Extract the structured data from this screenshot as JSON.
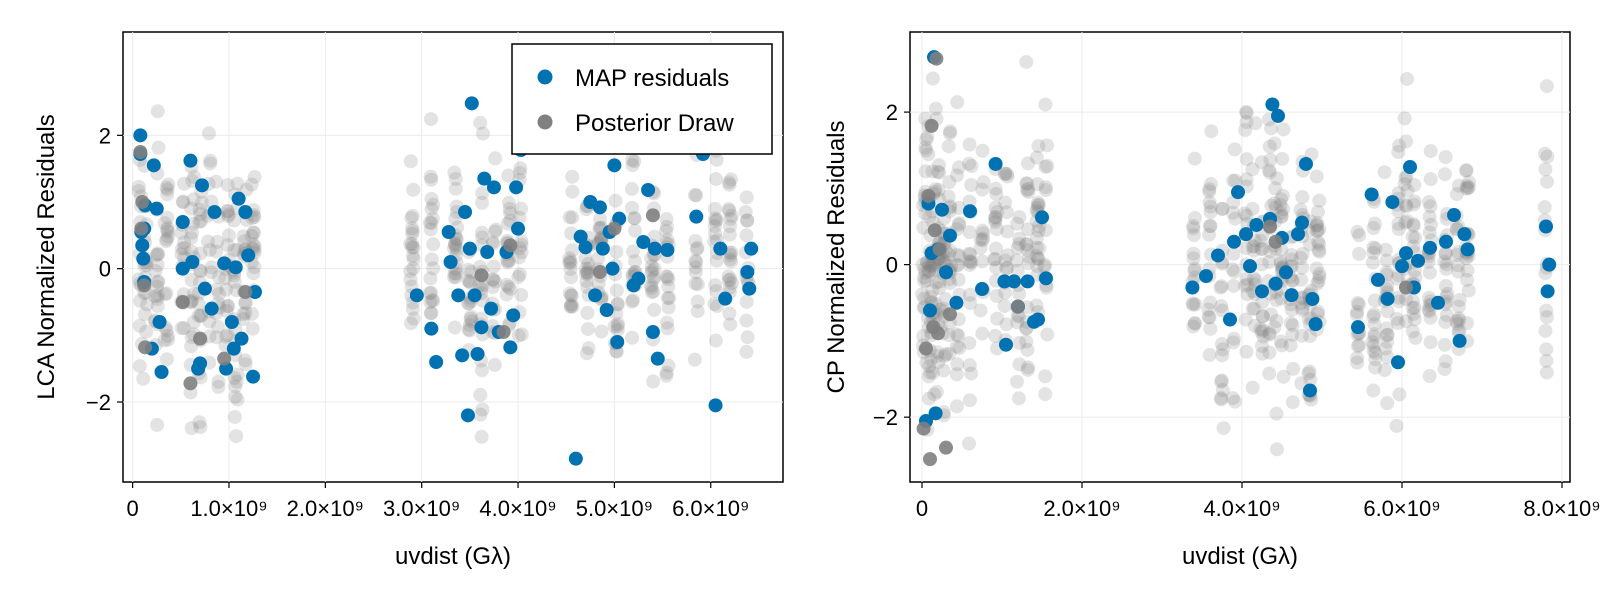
{
  "chart_data": [
    {
      "type": "scatter",
      "xlabel": "uvdist (Gλ)",
      "ylabel": "LCA Normalized Residuals",
      "xlim": [
        -100000000.0,
        6750000000.0
      ],
      "ylim": [
        -3.2,
        3.55
      ],
      "grid": true,
      "legend": {
        "placement": "top-right",
        "entries": [
          "MAP residuals",
          "Posterior Draw"
        ]
      },
      "x_ticks": [
        {
          "value": 0,
          "label": "0"
        },
        {
          "value": 1000000000.0,
          "label": "1.0×10⁹"
        },
        {
          "value": 2000000000.0,
          "label": "2.0×10⁹"
        },
        {
          "value": 3000000000.0,
          "label": "3.0×10⁹"
        },
        {
          "value": 4000000000.0,
          "label": "4.0×10⁹"
        },
        {
          "value": 5000000000.0,
          "label": "5.0×10⁹"
        },
        {
          "value": 6000000000.0,
          "label": "6.0×10⁹"
        }
      ],
      "y_ticks": [
        {
          "value": -2,
          "label": "−2"
        },
        {
          "value": 0,
          "label": "0"
        },
        {
          "value": 2,
          "label": "2"
        }
      ],
      "x_clusters": [
        80000000.0,
        130000000.0,
        250000000.0,
        350000000.0,
        520000000.0,
        620000000.0,
        700000000.0,
        800000000.0,
        880000000.0,
        980000000.0,
        1070000000.0,
        1170000000.0,
        1250000000.0,
        2900000000.0,
        3100000000.0,
        3350000000.0,
        3500000000.0,
        3620000000.0,
        3750000000.0,
        3900000000.0,
        4020000000.0,
        4550000000.0,
        4720000000.0,
        4850000000.0,
        5020000000.0,
        5200000000.0,
        5400000000.0,
        5550000000.0,
        5850000000.0,
        6050000000.0,
        6200000000.0,
        6380000000.0
      ],
      "series": [
        {
          "name": "MAP residuals",
          "color": "#0072b2",
          "x": [
            80000000.0,
            80000000.0,
            90000000.0,
            100000000.0,
            110000000.0,
            120000000.0,
            120000000.0,
            130000000.0,
            200000000.0,
            220000000.0,
            250000000.0,
            280000000.0,
            300000000.0,
            520000000.0,
            520000000.0,
            600000000.0,
            620000000.0,
            680000000.0,
            700000000.0,
            720000000.0,
            750000000.0,
            820000000.0,
            850000000.0,
            950000000.0,
            970000000.0,
            1030000000.0,
            1050000000.0,
            1070000000.0,
            1100000000.0,
            1130000000.0,
            1170000000.0,
            1200000000.0,
            1250000000.0,
            1270000000.0,
            2950000000.0,
            3100000000.0,
            3150000000.0,
            3280000000.0,
            3300000000.0,
            3380000000.0,
            3420000000.0,
            3450000000.0,
            3480000000.0,
            3500000000.0,
            3520000000.0,
            3550000000.0,
            3580000000.0,
            3620000000.0,
            3650000000.0,
            3680000000.0,
            3720000000.0,
            3750000000.0,
            3800000000.0,
            3880000000.0,
            3920000000.0,
            3950000000.0,
            3980000000.0,
            4000000000.0,
            4030000000.0,
            4600000000.0,
            4650000000.0,
            4700000000.0,
            4750000000.0,
            4800000000.0,
            4850000000.0,
            4880000000.0,
            4920000000.0,
            4950000000.0,
            4980000000.0,
            5000000000.0,
            5030000000.0,
            5050000000.0,
            5200000000.0,
            5250000000.0,
            5300000000.0,
            5350000000.0,
            5400000000.0,
            5420000000.0,
            5450000000.0,
            5550000000.0,
            5850000000.0,
            5920000000.0,
            6050000000.0,
            6100000000.0,
            6150000000.0,
            6380000000.0,
            6400000000.0,
            6420000000.0
          ],
          "y": [
            2.0,
            1.72,
            0.55,
            0.35,
            0.15,
            -0.2,
            0.6,
            0.95,
            -1.2,
            1.55,
            0.9,
            -0.8,
            -1.55,
            0.0,
            0.7,
            1.62,
            0.1,
            -1.5,
            -1.42,
            1.25,
            -0.3,
            -0.6,
            0.85,
            0.08,
            -1.5,
            -0.8,
            -1.2,
            0.02,
            1.05,
            -1.05,
            0.85,
            0.2,
            -1.62,
            -0.35,
            -0.4,
            -0.9,
            -1.4,
            0.55,
            0.1,
            -0.4,
            -1.3,
            0.85,
            -2.2,
            0.3,
            2.48,
            -0.4,
            -1.28,
            -0.88,
            1.35,
            0.25,
            -0.6,
            1.22,
            -0.95,
            0.25,
            -1.18,
            -0.7,
            1.22,
            0.6,
            1.78,
            -2.85,
            0.48,
            0.32,
            1.0,
            -0.4,
            0.92,
            0.3,
            -0.62,
            0.55,
            0.0,
            1.55,
            -1.1,
            0.75,
            -0.25,
            -0.15,
            0.4,
            1.18,
            -0.95,
            0.3,
            -1.35,
            0.28,
            0.78,
            1.72,
            -2.05,
            0.3,
            -0.45,
            -0.05,
            -0.3,
            0.3
          ]
        },
        {
          "name": "Posterior Draw",
          "color": "#808080",
          "x": [
            80000000.0,
            90000000.0,
            100000000.0,
            120000000.0,
            130000000.0,
            520000000.0,
            600000000.0,
            700000000.0,
            950000000.0,
            1170000000.0,
            3620000000.0,
            3850000000.0,
            3920000000.0,
            4850000000.0,
            5000000000.0,
            5400000000.0
          ],
          "y": [
            1.75,
            0.6,
            1.0,
            -0.25,
            -1.18,
            -0.5,
            -1.72,
            -1.05,
            -1.35,
            -0.35,
            -0.1,
            -0.95,
            0.35,
            -0.05,
            0.6,
            0.8
          ]
        }
      ]
    },
    {
      "type": "scatter",
      "xlabel": "uvdist (Gλ)",
      "ylabel": "CP Normalized Residuals",
      "xlim": [
        -150000000.0,
        8100000000.0
      ],
      "ylim": [
        -2.85,
        3.05
      ],
      "grid": true,
      "x_ticks": [
        {
          "value": 0,
          "label": "0"
        },
        {
          "value": 2000000000.0,
          "label": "2.0×10⁹"
        },
        {
          "value": 4000000000.0,
          "label": "4.0×10⁹"
        },
        {
          "value": 6000000000.0,
          "label": "6.0×10⁹"
        },
        {
          "value": 8000000000.0,
          "label": "8.0×10⁹"
        }
      ],
      "y_ticks": [
        {
          "value": -2,
          "label": "−2"
        },
        {
          "value": 0,
          "label": "0"
        },
        {
          "value": 2,
          "label": "2"
        }
      ],
      "x_clusters": [
        20000000.0,
        60000000.0,
        100000000.0,
        140000000.0,
        180000000.0,
        220000000.0,
        280000000.0,
        350000000.0,
        450000000.0,
        600000000.0,
        750000000.0,
        920000000.0,
        1050000000.0,
        1200000000.0,
        1320000000.0,
        1450000000.0,
        1550000000.0,
        3400000000.0,
        3600000000.0,
        3750000000.0,
        3900000000.0,
        4050000000.0,
        4150000000.0,
        4250000000.0,
        4350000000.0,
        4420000000.0,
        4500000000.0,
        4620000000.0,
        4750000000.0,
        4850000000.0,
        4950000000.0,
        5450000000.0,
        5650000000.0,
        5800000000.0,
        5950000000.0,
        6050000000.0,
        6150000000.0,
        6350000000.0,
        6550000000.0,
        6700000000.0,
        6820000000.0,
        7800000000.0
      ],
      "series": [
        {
          "name": "MAP residuals",
          "color": "#0072b2",
          "x": [
            50000000.0,
            80000000.0,
            100000000.0,
            120000000.0,
            150000000.0,
            170000000.0,
            200000000.0,
            250000000.0,
            300000000.0,
            350000000.0,
            430000000.0,
            600000000.0,
            750000000.0,
            920000000.0,
            1030000000.0,
            1050000000.0,
            1150000000.0,
            1200000000.0,
            1320000000.0,
            1400000000.0,
            1450000000.0,
            1500000000.0,
            1550000000.0,
            3380000000.0,
            3550000000.0,
            3700000000.0,
            3850000000.0,
            3900000000.0,
            3950000000.0,
            4050000000.0,
            4100000000.0,
            4180000000.0,
            4250000000.0,
            4350000000.0,
            4380000000.0,
            4420000000.0,
            4450000000.0,
            4500000000.0,
            4550000000.0,
            4620000000.0,
            4700000000.0,
            4750000000.0,
            4800000000.0,
            4850000000.0,
            4880000000.0,
            4920000000.0,
            5450000000.0,
            5620000000.0,
            5700000000.0,
            5820000000.0,
            5880000000.0,
            5950000000.0,
            6000000000.0,
            6050000000.0,
            6100000000.0,
            6150000000.0,
            6200000000.0,
            6350000000.0,
            6450000000.0,
            6550000000.0,
            6650000000.0,
            6720000000.0,
            6780000000.0,
            6820000000.0,
            7800000000.0,
            7820000000.0,
            7840000000.0
          ],
          "y": [
            -2.05,
            0.8,
            -0.6,
            0.15,
            2.72,
            -1.95,
            0.2,
            0.72,
            -0.1,
            0.38,
            -0.5,
            0.7,
            -0.32,
            1.32,
            -0.22,
            -1.05,
            -0.22,
            -0.55,
            -0.22,
            -0.75,
            -0.72,
            0.62,
            -0.18,
            -0.3,
            -0.15,
            0.12,
            -0.72,
            0.3,
            0.95,
            0.4,
            -0.02,
            0.52,
            -0.35,
            0.6,
            2.1,
            -0.25,
            1.95,
            0.35,
            -0.1,
            -0.4,
            0.4,
            0.55,
            1.32,
            -1.65,
            -0.45,
            -0.78,
            -0.82,
            0.92,
            -0.2,
            -0.45,
            0.82,
            -1.28,
            -0.02,
            0.15,
            1.28,
            -0.3,
            0.05,
            0.22,
            -0.5,
            0.3,
            0.65,
            -1.0,
            0.4,
            0.2,
            0.5,
            -0.35,
            0.0
          ]
        },
        {
          "name": "Posterior Draw",
          "color": "#808080",
          "x": [
            20000000.0,
            50000000.0,
            80000000.0,
            100000000.0,
            120000000.0,
            140000000.0,
            160000000.0,
            180000000.0,
            200000000.0,
            220000000.0,
            300000000.0,
            350000000.0,
            1200000000.0,
            4350000000.0,
            4420000000.0,
            6050000000.0
          ],
          "y": [
            -2.15,
            -1.1,
            0.9,
            -2.55,
            1.82,
            -0.82,
            0.45,
            2.7,
            -0.9,
            0.2,
            -2.4,
            -0.65,
            -0.55,
            0.5,
            0.3,
            -0.3
          ]
        }
      ]
    }
  ]
}
